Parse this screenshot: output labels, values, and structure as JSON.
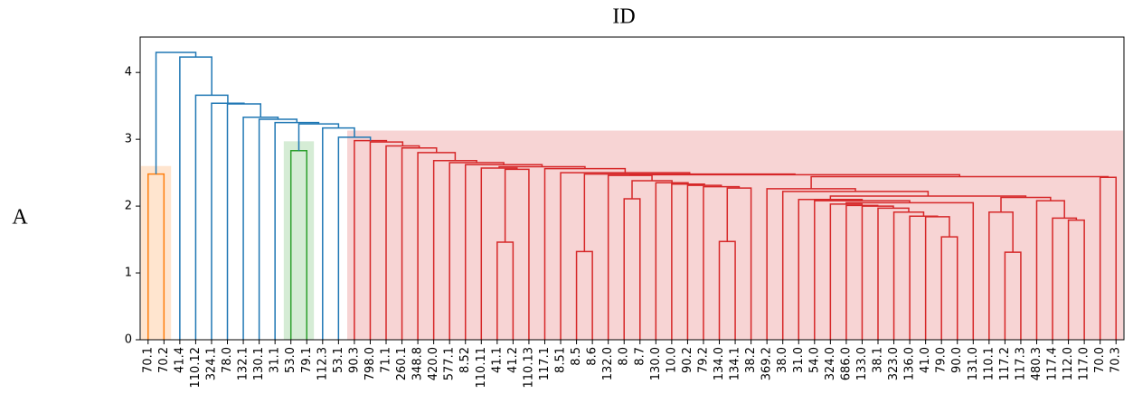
{
  "chart_data": {
    "type": "dendrogram",
    "title": "ID",
    "y_label": "A",
    "leaves": [
      "70.1",
      "70.2",
      "41.4",
      "110.12",
      "324.1",
      "78.0",
      "132.1",
      "130.1",
      "31.1",
      "53.0",
      "79.1",
      "112.3",
      "53.1",
      "90.3",
      "798.0",
      "71.1",
      "260.1",
      "348.8",
      "420.0",
      "577.1",
      "8.52",
      "110.11",
      "41.1",
      "41.2",
      "110.13",
      "117.1",
      "8.51",
      "8.5",
      "8.6",
      "132.0",
      "8.0",
      "8.7",
      "130.0",
      "10.0",
      "90.2",
      "79.2",
      "134.0",
      "134.1",
      "38.2",
      "369.2",
      "38.0",
      "31.0",
      "54.0",
      "324.0",
      "686.0",
      "133.0",
      "38.1",
      "323.0",
      "136.0",
      "41.0",
      "79.0",
      "90.0",
      "131.0",
      "110.1",
      "117.2",
      "117.3",
      "480.3",
      "117.4",
      "112.0",
      "117.0",
      "70.0",
      "70.3"
    ],
    "links": [
      {
        "left": 0,
        "right": 1,
        "height": 2.48,
        "color": "#ff7f0e"
      },
      {
        "left": 9,
        "right": 10,
        "height": 2.83,
        "color": "#2ca02c"
      },
      {
        "left": 22,
        "right": 23,
        "height": 1.46,
        "color": "#d62728"
      },
      {
        "left": 64,
        "right": 24,
        "height": 2.55,
        "color": "#d62728"
      },
      {
        "left": 21,
        "right": 65,
        "height": 2.57,
        "color": "#d62728"
      },
      {
        "left": 27,
        "right": 28,
        "height": 1.32,
        "color": "#d62728"
      },
      {
        "left": 30,
        "right": 31,
        "height": 2.11,
        "color": "#d62728"
      },
      {
        "left": 36,
        "right": 37,
        "height": 1.47,
        "color": "#d62728"
      },
      {
        "left": 69,
        "right": 38,
        "height": 2.27,
        "color": "#d62728"
      },
      {
        "left": 35,
        "right": 70,
        "height": 2.29,
        "color": "#d62728"
      },
      {
        "left": 34,
        "right": 71,
        "height": 2.31,
        "color": "#d62728"
      },
      {
        "left": 33,
        "right": 72,
        "height": 2.33,
        "color": "#d62728"
      },
      {
        "left": 32,
        "right": 73,
        "height": 2.35,
        "color": "#d62728"
      },
      {
        "left": 68,
        "right": 74,
        "height": 2.38,
        "color": "#d62728"
      },
      {
        "left": 29,
        "right": 75,
        "height": 2.46,
        "color": "#d62728"
      },
      {
        "left": 50,
        "right": 51,
        "height": 1.54,
        "color": "#d62728"
      },
      {
        "left": 49,
        "right": 77,
        "height": 1.84,
        "color": "#d62728"
      },
      {
        "left": 48,
        "right": 78,
        "height": 1.85,
        "color": "#d62728"
      },
      {
        "left": 47,
        "right": 79,
        "height": 1.91,
        "color": "#d62728"
      },
      {
        "left": 46,
        "right": 80,
        "height": 1.97,
        "color": "#d62728"
      },
      {
        "left": 45,
        "right": 81,
        "height": 2.0,
        "color": "#d62728"
      },
      {
        "left": 44,
        "right": 82,
        "height": 2.01,
        "color": "#d62728"
      },
      {
        "left": 43,
        "right": 83,
        "height": 2.03,
        "color": "#d62728"
      },
      {
        "left": 84,
        "right": 52,
        "height": 2.05,
        "color": "#d62728"
      },
      {
        "left": 42,
        "right": 85,
        "height": 2.08,
        "color": "#d62728"
      },
      {
        "left": 41,
        "right": 86,
        "height": 2.1,
        "color": "#d62728"
      },
      {
        "left": 54,
        "right": 55,
        "height": 1.31,
        "color": "#d62728"
      },
      {
        "left": 53,
        "right": 88,
        "height": 1.91,
        "color": "#d62728"
      },
      {
        "left": 58,
        "right": 59,
        "height": 1.79,
        "color": "#d62728"
      },
      {
        "left": 57,
        "right": 90,
        "height": 1.82,
        "color": "#d62728"
      },
      {
        "left": 56,
        "right": 91,
        "height": 2.08,
        "color": "#d62728"
      },
      {
        "left": 89,
        "right": 92,
        "height": 2.13,
        "color": "#d62728"
      },
      {
        "left": 87,
        "right": 93,
        "height": 2.15,
        "color": "#d62728"
      },
      {
        "left": 40,
        "right": 94,
        "height": 2.22,
        "color": "#d62728"
      },
      {
        "left": 39,
        "right": 95,
        "height": 2.26,
        "color": "#d62728"
      },
      {
        "left": 60,
        "right": 61,
        "height": 2.43,
        "color": "#d62728"
      },
      {
        "left": 96,
        "right": 97,
        "height": 2.44,
        "color": "#d62728"
      },
      {
        "left": 76,
        "right": 98,
        "height": 2.47,
        "color": "#d62728"
      },
      {
        "left": 67,
        "right": 99,
        "height": 2.48,
        "color": "#d62728"
      },
      {
        "left": 26,
        "right": 100,
        "height": 2.5,
        "color": "#d62728"
      },
      {
        "left": 25,
        "right": 101,
        "height": 2.56,
        "color": "#d62728"
      },
      {
        "left": 66,
        "right": 102,
        "height": 2.59,
        "color": "#d62728"
      },
      {
        "left": 20,
        "right": 103,
        "height": 2.62,
        "color": "#d62728"
      },
      {
        "left": 19,
        "right": 104,
        "height": 2.65,
        "color": "#d62728"
      },
      {
        "left": 18,
        "right": 105,
        "height": 2.68,
        "color": "#d62728"
      },
      {
        "left": 17,
        "right": 106,
        "height": 2.8,
        "color": "#d62728"
      },
      {
        "left": 16,
        "right": 107,
        "height": 2.87,
        "color": "#d62728"
      },
      {
        "left": 15,
        "right": 108,
        "height": 2.9,
        "color": "#d62728"
      },
      {
        "left": 14,
        "right": 109,
        "height": 2.96,
        "color": "#d62728"
      },
      {
        "left": 13,
        "right": 110,
        "height": 2.98,
        "color": "#d62728"
      },
      {
        "left": 12,
        "right": 111,
        "height": 3.03,
        "color": "#1f77b4"
      },
      {
        "left": 11,
        "right": 112,
        "height": 3.17,
        "color": "#1f77b4"
      },
      {
        "left": 63,
        "right": 113,
        "height": 3.23,
        "color": "#1f77b4"
      },
      {
        "left": 8,
        "right": 114,
        "height": 3.25,
        "color": "#1f77b4"
      },
      {
        "left": 7,
        "right": 115,
        "height": 3.3,
        "color": "#1f77b4"
      },
      {
        "left": 6,
        "right": 116,
        "height": 3.33,
        "color": "#1f77b4"
      },
      {
        "left": 5,
        "right": 117,
        "height": 3.53,
        "color": "#1f77b4"
      },
      {
        "left": 4,
        "right": 118,
        "height": 3.54,
        "color": "#1f77b4"
      },
      {
        "left": 3,
        "right": 119,
        "height": 3.66,
        "color": "#1f77b4"
      },
      {
        "left": 2,
        "right": 120,
        "height": 4.23,
        "color": "#1f77b4"
      },
      {
        "left": 62,
        "right": 121,
        "height": 4.3,
        "color": "#1f77b4"
      }
    ],
    "highlights": [
      {
        "from": 0,
        "to": 1,
        "height": 2.6,
        "color": "#ff7f0e"
      },
      {
        "from": 9,
        "to": 10,
        "height": 2.97,
        "color": "#2ca02c"
      },
      {
        "from": 13,
        "to": 61,
        "height": 3.13,
        "color": "#d62728"
      }
    ],
    "ylim": [
      0,
      4.53
    ],
    "yticks": [
      0,
      1,
      2,
      3,
      4
    ]
  }
}
